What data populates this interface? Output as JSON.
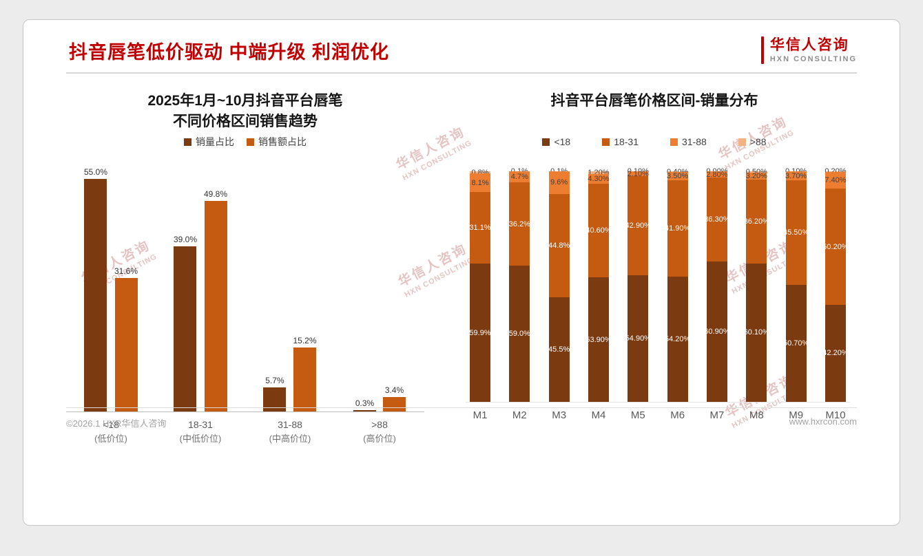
{
  "page": {
    "title": "抖音唇笔低价驱动 中端升级 利润优化",
    "logo": {
      "name": "华信人咨询",
      "subtitle": "HXN CONSULTING"
    },
    "footer": {
      "copyright": "©2026.1 HXR华信人咨询",
      "website": "www.hxrcon.com"
    },
    "watermark": {
      "line1": "华信人咨询",
      "line2": "HXN CONSULTING"
    }
  },
  "colors": {
    "title_red": "#C00000",
    "dark_brown": "#7B3A0F",
    "orange": "#C55A11",
    "light_orange": "#ED7D31",
    "pale_orange": "#F4B183"
  },
  "chart_data": [
    {
      "type": "bar",
      "title_line1": "2025年1月~10月抖音平台唇笔",
      "title_line2": "不同价格区间销售趋势",
      "legend_position": "top",
      "grid": false,
      "ylim": [
        0,
        60
      ],
      "categories": [
        {
          "label": "<18",
          "sublabel": "(低价位)"
        },
        {
          "label": "18-31",
          "sublabel": "(中低价位)"
        },
        {
          "label": "31-88",
          "sublabel": "(中高价位)"
        },
        {
          "label": ">88",
          "sublabel": "(高价位)"
        }
      ],
      "series": [
        {
          "name": "销量占比",
          "color": "#7B3A0F",
          "values": [
            55.0,
            39.0,
            5.7,
            0.3
          ],
          "labels": [
            "55.0%",
            "39.0%",
            "5.7%",
            "0.3%"
          ]
        },
        {
          "name": "销售额占比",
          "color": "#C55A11",
          "values": [
            31.6,
            49.8,
            15.2,
            3.4
          ],
          "labels": [
            "31.6%",
            "49.8%",
            "15.2%",
            "3.4%"
          ]
        }
      ]
    },
    {
      "type": "stacked-bar",
      "title": "抖音平台唇笔价格区间-销量分布",
      "legend_position": "top",
      "grid": false,
      "ylim": [
        0,
        100
      ],
      "categories": [
        "M1",
        "M2",
        "M3",
        "M4",
        "M5",
        "M6",
        "M7",
        "M8",
        "M9",
        "M10"
      ],
      "series": [
        {
          "name": "<18",
          "color": "#7B3A0F",
          "values": [
            59.9,
            59.0,
            45.5,
            53.9,
            54.9,
            54.2,
            60.9,
            60.1,
            50.7,
            42.2
          ],
          "labels": [
            "59.9%",
            "59.0%",
            "45.5%",
            "53.90%",
            "54.90%",
            "54.20%",
            "60.90%",
            "60.10%",
            "50.70%",
            "42.20%"
          ]
        },
        {
          "name": "18-31",
          "color": "#C55A11",
          "values": [
            31.1,
            36.2,
            44.8,
            40.6,
            42.9,
            41.9,
            36.3,
            36.2,
            45.5,
            50.2
          ],
          "labels": [
            "31.1%",
            "36.2%",
            "44.8%",
            "40.60%",
            "42.90%",
            "41.90%",
            "36.30%",
            "36.20%",
            "45.50%",
            "50.20%"
          ]
        },
        {
          "name": "31-88",
          "color": "#ED7D31",
          "values": [
            8.1,
            4.7,
            9.6,
            4.3,
            2.1,
            3.5,
            2.8,
            3.2,
            3.7,
            7.4
          ],
          "labels": [
            "8.1%",
            "4.7%",
            "9.6%",
            "4.30%",
            "2.10%",
            "3.50%",
            "2.80%",
            "3.20%",
            "3.70%",
            "7.40%"
          ]
        },
        {
          "name": ">88",
          "color": "#F4B183",
          "values": [
            0.8,
            0.1,
            0.1,
            1.2,
            0.1,
            0.4,
            0.0,
            0.5,
            0.1,
            0.2
          ],
          "labels": [
            "0.8%",
            "0.1%",
            "0.1%",
            "1.20%",
            "0.10%",
            "0.40%",
            "0.00%",
            "0.50%",
            "0.10%",
            "0.20%"
          ]
        }
      ]
    }
  ]
}
